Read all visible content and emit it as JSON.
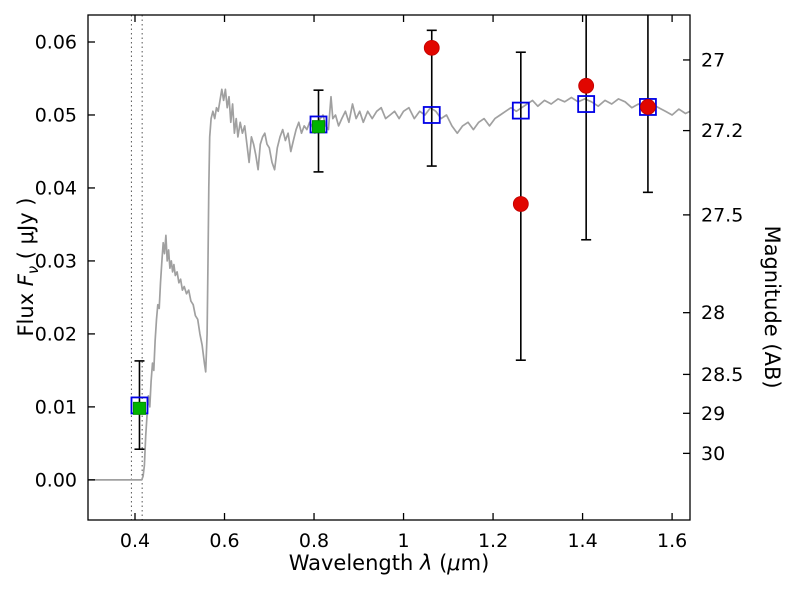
{
  "labels": {
    "x_pre": "Wavelength ",
    "x_lambda": "λ",
    "x_mid": " (",
    "x_mu": "μ",
    "x_post": "m)",
    "flux_pre": "Flux ",
    "flux_sym": "F",
    "flux_sub": "ν",
    "flux_post": " ( μJy )",
    "y2": "Magnitude (AB)"
  },
  "chart_data": {
    "type": "line+scatter",
    "title": "",
    "xlabel": "Wavelength λ (μm)",
    "ylabel": "Flux Fν ( μJy )",
    "y2label": "Magnitude (AB)",
    "xlim": [
      0.295,
      1.64
    ],
    "ylim": [
      -0.0055,
      0.0637
    ],
    "grid": false,
    "legend": false,
    "x_ticks": [
      {
        "v": 0.4,
        "label": "0.4"
      },
      {
        "v": 0.6,
        "label": "0.6"
      },
      {
        "v": 0.8,
        "label": "0.8"
      },
      {
        "v": 1.0,
        "label": "1"
      },
      {
        "v": 1.2,
        "label": "1.2"
      },
      {
        "v": 1.4,
        "label": "1.4"
      },
      {
        "v": 1.6,
        "label": "1.6"
      }
    ],
    "y_ticks": [
      {
        "v": 0.0,
        "label": "0.00"
      },
      {
        "v": 0.01,
        "label": "0.01"
      },
      {
        "v": 0.02,
        "label": "0.02"
      },
      {
        "v": 0.03,
        "label": "0.03"
      },
      {
        "v": 0.04,
        "label": "0.04"
      },
      {
        "v": 0.05,
        "label": "0.05"
      },
      {
        "v": 0.06,
        "label": "0.06"
      }
    ],
    "y2_ticks": [
      {
        "flux": 0.05754,
        "label": "27"
      },
      {
        "flux": 0.04786,
        "label": "27.2"
      },
      {
        "flux": 0.03631,
        "label": "27.5"
      },
      {
        "flux": 0.02291,
        "label": "28"
      },
      {
        "flux": 0.01445,
        "label": "28.5"
      },
      {
        "flux": 0.00912,
        "label": "29"
      },
      {
        "flux": 0.00363,
        "label": "30"
      }
    ],
    "band_lines": [
      0.392,
      0.416
    ],
    "colors": {
      "spectrum": "#a0a0a0",
      "observed": "#e10600",
      "model": "#0000e6",
      "detected": "#00b300",
      "errorbar": "#000000"
    },
    "error_bars": [
      {
        "x": 0.41,
        "lo": 0.0042,
        "hi": 0.0163
      },
      {
        "x": 0.81,
        "lo": 0.0422,
        "hi": 0.0534
      },
      {
        "x": 1.063,
        "lo": 0.043,
        "hi": 0.0616
      },
      {
        "x": 1.262,
        "lo": 0.0164,
        "hi": 0.0586
      },
      {
        "x": 1.408,
        "lo": 0.0329,
        "hi": 0.0644
      },
      {
        "x": 1.546,
        "lo": 0.0394,
        "hi": 0.0648
      }
    ],
    "series": [
      {
        "name": "model-spectrum",
        "type": "line",
        "color_key": "spectrum",
        "x": [
          0.295,
          0.35,
          0.4,
          0.415,
          0.418,
          0.421,
          0.424,
          0.427,
          0.43,
          0.433,
          0.436,
          0.439,
          0.442,
          0.445,
          0.448,
          0.451,
          0.454,
          0.457,
          0.46,
          0.463,
          0.466,
          0.469,
          0.472,
          0.475,
          0.478,
          0.481,
          0.484,
          0.487,
          0.49,
          0.494,
          0.498,
          0.502,
          0.506,
          0.51,
          0.515,
          0.52,
          0.525,
          0.53,
          0.535,
          0.54,
          0.545,
          0.55,
          0.555,
          0.558,
          0.561,
          0.563,
          0.565,
          0.567,
          0.57,
          0.574,
          0.578,
          0.582,
          0.586,
          0.59,
          0.594,
          0.598,
          0.602,
          0.606,
          0.61,
          0.614,
          0.618,
          0.622,
          0.626,
          0.63,
          0.635,
          0.64,
          0.645,
          0.65,
          0.655,
          0.66,
          0.665,
          0.67,
          0.675,
          0.68,
          0.685,
          0.69,
          0.695,
          0.7,
          0.706,
          0.712,
          0.718,
          0.724,
          0.73,
          0.736,
          0.742,
          0.748,
          0.754,
          0.76,
          0.766,
          0.772,
          0.778,
          0.784,
          0.79,
          0.796,
          0.802,
          0.808,
          0.814,
          0.82,
          0.826,
          0.832,
          0.838,
          0.842,
          0.848,
          0.855,
          0.862,
          0.87,
          0.878,
          0.886,
          0.894,
          0.902,
          0.91,
          0.92,
          0.93,
          0.94,
          0.95,
          0.96,
          0.97,
          0.98,
          0.99,
          1.0,
          1.012,
          1.024,
          1.036,
          1.048,
          1.06,
          1.072,
          1.084,
          1.096,
          1.108,
          1.12,
          1.132,
          1.144,
          1.156,
          1.168,
          1.18,
          1.192,
          1.204,
          1.216,
          1.228,
          1.24,
          1.252,
          1.264,
          1.276,
          1.288,
          1.3,
          1.315,
          1.33,
          1.345,
          1.36,
          1.375,
          1.39,
          1.405,
          1.42,
          1.435,
          1.45,
          1.465,
          1.48,
          1.495,
          1.51,
          1.525,
          1.54,
          1.555,
          1.57,
          1.585,
          1.6,
          1.615,
          1.63,
          1.64
        ],
        "y": [
          0,
          0,
          0,
          0,
          0.0005,
          0.002,
          0.006,
          0.009,
          0.0115,
          0.01,
          0.0135,
          0.016,
          0.015,
          0.019,
          0.022,
          0.024,
          0.0235,
          0.027,
          0.03,
          0.0325,
          0.031,
          0.0335,
          0.03,
          0.0315,
          0.029,
          0.03,
          0.0285,
          0.0295,
          0.028,
          0.0285,
          0.027,
          0.0275,
          0.026,
          0.0265,
          0.0255,
          0.026,
          0.0245,
          0.024,
          0.0225,
          0.022,
          0.02,
          0.0185,
          0.016,
          0.0148,
          0.02,
          0.03,
          0.04,
          0.047,
          0.0495,
          0.0505,
          0.0495,
          0.051,
          0.0505,
          0.052,
          0.0535,
          0.052,
          0.0535,
          0.051,
          0.0525,
          0.049,
          0.0515,
          0.0475,
          0.0495,
          0.047,
          0.049,
          0.0475,
          0.0485,
          0.046,
          0.0435,
          0.047,
          0.046,
          0.0445,
          0.0425,
          0.046,
          0.047,
          0.0475,
          0.046,
          0.0455,
          0.0435,
          0.0425,
          0.0455,
          0.047,
          0.048,
          0.0465,
          0.0475,
          0.045,
          0.0465,
          0.048,
          0.049,
          0.0475,
          0.0485,
          0.048,
          0.049,
          0.0485,
          0.0475,
          0.049,
          0.0495,
          0.05,
          0.0485,
          0.048,
          0.0525,
          0.0495,
          0.05,
          0.0485,
          0.0495,
          0.0505,
          0.049,
          0.0515,
          0.0495,
          0.0505,
          0.049,
          0.0505,
          0.0495,
          0.0505,
          0.051,
          0.0495,
          0.05,
          0.0505,
          0.0495,
          0.0505,
          0.051,
          0.0495,
          0.0505,
          0.05,
          0.051,
          0.0505,
          0.0495,
          0.05,
          0.0485,
          0.0475,
          0.0485,
          0.049,
          0.048,
          0.049,
          0.0495,
          0.0485,
          0.0495,
          0.05,
          0.0505,
          0.051,
          0.0505,
          0.051,
          0.0515,
          0.052,
          0.0512,
          0.052,
          0.0515,
          0.0522,
          0.0518,
          0.0524,
          0.0518,
          0.0522,
          0.0518,
          0.0512,
          0.052,
          0.0515,
          0.0522,
          0.0518,
          0.051,
          0.0515,
          0.0508,
          0.0515,
          0.051,
          0.0505,
          0.05,
          0.0508,
          0.0502,
          0.0505
        ]
      },
      {
        "name": "model-photometry",
        "type": "scatter",
        "marker": "open-square",
        "color_key": "model",
        "x": [
          0.41,
          0.81,
          1.063,
          1.262,
          1.408,
          1.546
        ],
        "y": [
          0.0102,
          0.0487,
          0.05,
          0.0506,
          0.0515,
          0.0511
        ]
      },
      {
        "name": "observed-optical",
        "type": "scatter",
        "marker": "filled-square",
        "color_key": "detected",
        "x": [
          0.41,
          0.81
        ],
        "y": [
          0.0098,
          0.0484
        ]
      },
      {
        "name": "observed-infrared",
        "type": "scatter",
        "marker": "filled-circle",
        "color_key": "observed",
        "x": [
          1.063,
          1.262,
          1.408,
          1.546
        ],
        "y": [
          0.0592,
          0.0378,
          0.054,
          0.0511
        ]
      }
    ]
  }
}
